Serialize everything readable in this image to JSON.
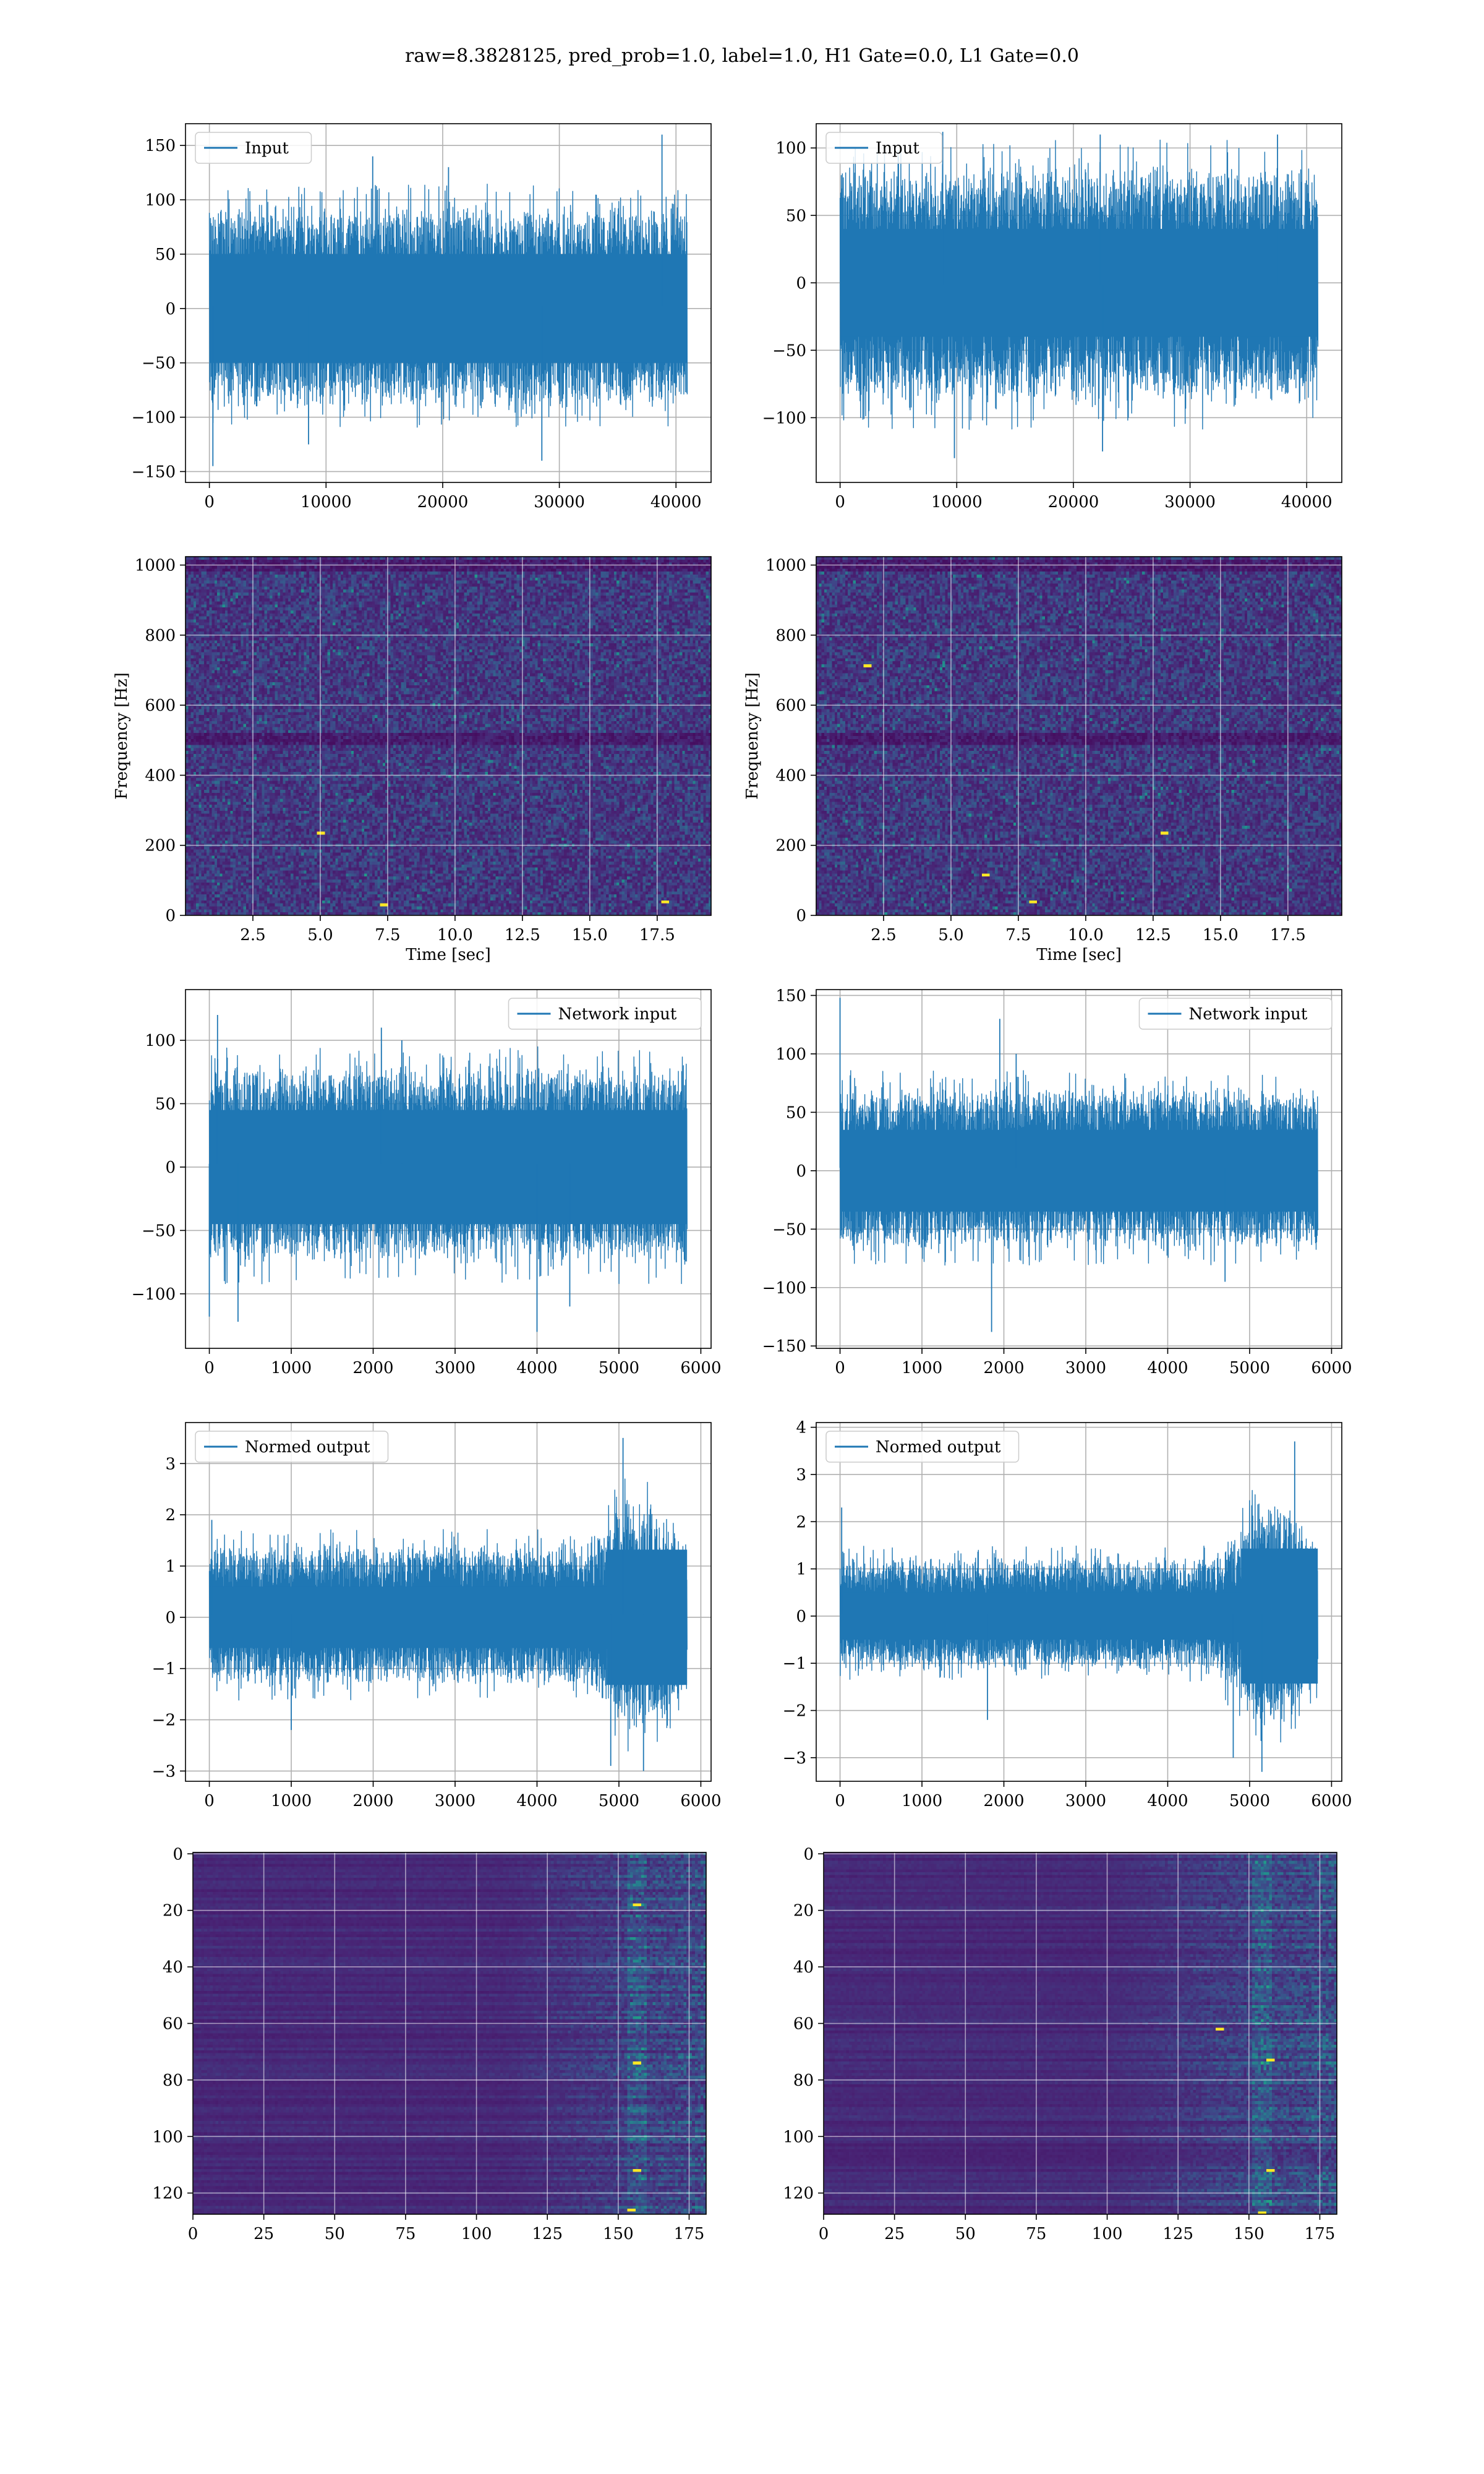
{
  "figure": {
    "suptitle": "raw=8.3828125, pred_prob=1.0, label=1.0, H1 Gate=0.0, L1 Gate=0.0"
  },
  "chart_data": [
    {
      "id": "input_h1",
      "type": "line",
      "legend": "Input",
      "legend_loc": "upper-left",
      "xlim": [
        -2048,
        43008
      ],
      "ylim": [
        -160,
        170
      ],
      "xticks": [
        0,
        10000,
        20000,
        30000,
        40000
      ],
      "xtick_labels": [
        "0",
        "10000",
        "20000",
        "30000",
        "40000"
      ],
      "yticks": [
        -150,
        -100,
        -50,
        0,
        50,
        100,
        150
      ],
      "ytick_labels": [
        "−150",
        "−100",
        "−50",
        "0",
        "50",
        "100",
        "150"
      ],
      "grid": true,
      "color": "#1f77b4",
      "signal": {
        "n_samples": 40960,
        "x_max": 40960,
        "envelope_lo": -95,
        "envelope_hi": 100,
        "typical_band": [
          -50,
          50
        ],
        "spikes": [
          [
            300,
            -145
          ],
          [
            14000,
            140
          ],
          [
            38800,
            160
          ],
          [
            20500,
            130
          ],
          [
            8500,
            -125
          ],
          [
            28500,
            -140
          ]
        ]
      }
    },
    {
      "id": "input_l1",
      "type": "line",
      "legend": "Input",
      "legend_loc": "upper-left",
      "xlim": [
        -2048,
        43008
      ],
      "ylim": [
        -148,
        118
      ],
      "xticks": [
        0,
        10000,
        20000,
        30000,
        40000
      ],
      "xtick_labels": [
        "0",
        "10000",
        "20000",
        "30000",
        "40000"
      ],
      "yticks": [
        -100,
        -50,
        0,
        50,
        100
      ],
      "ytick_labels": [
        "−100",
        "−50",
        "0",
        "50",
        "100"
      ],
      "grid": true,
      "color": "#1f77b4",
      "signal": {
        "n_samples": 40960,
        "x_max": 40960,
        "envelope_lo": -95,
        "envelope_hi": 92,
        "typical_band": [
          -40,
          40
        ],
        "spikes": [
          [
            8800,
            112
          ],
          [
            37500,
            110
          ],
          [
            9800,
            -130
          ],
          [
            22500,
            -125
          ],
          [
            22300,
            110
          ]
        ]
      }
    },
    {
      "id": "spec_h1",
      "type": "heatmap",
      "colormap": "viridis",
      "xlabel": "Time [sec]",
      "ylabel": "Frequency [Hz]",
      "xlim": [
        0.0,
        19.5
      ],
      "ylim": [
        0,
        1024
      ],
      "xticks": [
        2.5,
        5.0,
        7.5,
        10.0,
        12.5,
        15.0,
        17.5
      ],
      "xtick_labels": [
        "2.5",
        "5.0",
        "7.5",
        "10.0",
        "12.5",
        "15.0",
        "17.5"
      ],
      "yticks": [
        0,
        200,
        400,
        600,
        800,
        1000
      ],
      "ytick_labels": [
        "0",
        "200",
        "400",
        "600",
        "800",
        "1000"
      ],
      "grid": true,
      "field": {
        "dark_bands_hz": [
          500,
          1000
        ],
        "hot_spots": [
          [
            7.3,
            30
          ],
          [
            17.7,
            40
          ],
          [
            5.0,
            240
          ]
        ],
        "seed": 11
      }
    },
    {
      "id": "spec_l1",
      "type": "heatmap",
      "colormap": "viridis",
      "xlabel": "Time [sec]",
      "ylabel": "Frequency [Hz]",
      "xlim": [
        0.0,
        19.5
      ],
      "ylim": [
        0,
        1024
      ],
      "xticks": [
        2.5,
        5.0,
        7.5,
        10.0,
        12.5,
        15.0,
        17.5
      ],
      "xtick_labels": [
        "2.5",
        "5.0",
        "7.5",
        "10.0",
        "12.5",
        "15.0",
        "17.5"
      ],
      "yticks": [
        0,
        200,
        400,
        600,
        800,
        1000
      ],
      "ytick_labels": [
        "0",
        "200",
        "400",
        "600",
        "800",
        "1000"
      ],
      "grid": true,
      "field": {
        "dark_bands_hz": [
          500,
          1000
        ],
        "hot_spots": [
          [
            6.2,
            120
          ],
          [
            1.9,
            720
          ],
          [
            8.0,
            40
          ],
          [
            12.9,
            240
          ]
        ],
        "seed": 23
      }
    },
    {
      "id": "netin_h1",
      "type": "line",
      "legend": "Network input",
      "legend_loc": "upper-right",
      "xlim": [
        -291,
        6125
      ],
      "ylim": [
        -143,
        140
      ],
      "xticks": [
        0,
        1000,
        2000,
        3000,
        4000,
        5000,
        6000
      ],
      "xtick_labels": [
        "0",
        "1000",
        "2000",
        "3000",
        "4000",
        "5000",
        "6000"
      ],
      "yticks": [
        -100,
        -50,
        0,
        50,
        100
      ],
      "ytick_labels": [
        "−100",
        "−50",
        "0",
        "50",
        "100"
      ],
      "grid": true,
      "color": "#1f77b4",
      "signal": {
        "n_samples": 5832,
        "x_max": 5832,
        "envelope_lo": -80,
        "envelope_hi": 85,
        "typical_band": [
          -45,
          45
        ],
        "spikes": [
          [
            0,
            -118
          ],
          [
            100,
            120
          ],
          [
            350,
            -122
          ],
          [
            2100,
            110
          ],
          [
            4000,
            -130
          ],
          [
            2350,
            100
          ],
          [
            4400,
            -110
          ]
        ]
      }
    },
    {
      "id": "netin_l1",
      "type": "line",
      "legend": "Network input",
      "legend_loc": "upper-right",
      "xlim": [
        -291,
        6125
      ],
      "ylim": [
        -152,
        155
      ],
      "xticks": [
        0,
        1000,
        2000,
        3000,
        4000,
        5000,
        6000
      ],
      "xtick_labels": [
        "0",
        "1000",
        "2000",
        "3000",
        "4000",
        "5000",
        "6000"
      ],
      "yticks": [
        -150,
        -100,
        -50,
        0,
        50,
        100,
        150
      ],
      "ytick_labels": [
        "−150",
        "−100",
        "−50",
        "0",
        "50",
        "100",
        "150"
      ],
      "grid": true,
      "color": "#1f77b4",
      "signal": {
        "n_samples": 5832,
        "x_max": 5832,
        "envelope_lo": -70,
        "envelope_hi": 75,
        "typical_band": [
          -35,
          35
        ],
        "spikes": [
          [
            0,
            148
          ],
          [
            1950,
            130
          ],
          [
            1850,
            -138
          ],
          [
            2150,
            100
          ],
          [
            4700,
            -95
          ]
        ]
      }
    },
    {
      "id": "normed_h1",
      "type": "line",
      "legend": "Normed output",
      "legend_loc": "upper-left",
      "xlim": [
        -291,
        6125
      ],
      "ylim": [
        -3.2,
        3.8
      ],
      "xticks": [
        0,
        1000,
        2000,
        3000,
        4000,
        5000,
        6000
      ],
      "xtick_labels": [
        "0",
        "1000",
        "2000",
        "3000",
        "4000",
        "5000",
        "6000"
      ],
      "yticks": [
        -3,
        -2,
        -1,
        0,
        1,
        2,
        3
      ],
      "ytick_labels": [
        "−3",
        "−2",
        "−1",
        "0",
        "1",
        "2",
        "3"
      ],
      "grid": true,
      "color": "#1f77b4",
      "signal": {
        "n_samples": 5832,
        "x_max": 5832,
        "envelope_lo": -1.4,
        "envelope_hi": 1.5,
        "typical_band": [
          -0.6,
          0.6
        ],
        "burst": {
          "start": 4650,
          "end": 5832,
          "amp": 2.4
        },
        "spikes": [
          [
            30,
            1.9
          ],
          [
            1000,
            -2.2
          ],
          [
            5050,
            3.5
          ],
          [
            5300,
            -3.0
          ],
          [
            4900,
            -2.9
          ]
        ]
      }
    },
    {
      "id": "normed_l1",
      "type": "line",
      "legend": "Normed output",
      "legend_loc": "upper-left",
      "xlim": [
        -291,
        6125
      ],
      "ylim": [
        -3.5,
        4.1
      ],
      "xticks": [
        0,
        1000,
        2000,
        3000,
        4000,
        5000,
        6000
      ],
      "xtick_labels": [
        "0",
        "1000",
        "2000",
        "3000",
        "4000",
        "5000",
        "6000"
      ],
      "yticks": [
        -3,
        -2,
        -1,
        0,
        1,
        2,
        3,
        4
      ],
      "ytick_labels": [
        "−3",
        "−2",
        "−1",
        "0",
        "1",
        "2",
        "3",
        "4"
      ],
      "grid": true,
      "color": "#1f77b4",
      "signal": {
        "n_samples": 5832,
        "x_max": 5832,
        "envelope_lo": -1.2,
        "envelope_hi": 1.3,
        "typical_band": [
          -0.5,
          0.5
        ],
        "burst": {
          "start": 4700,
          "end": 5832,
          "amp": 2.6
        },
        "spikes": [
          [
            20,
            2.3
          ],
          [
            1800,
            -2.2
          ],
          [
            5550,
            3.7
          ],
          [
            5150,
            -3.3
          ],
          [
            4800,
            -3.0
          ]
        ]
      }
    },
    {
      "id": "act_h1",
      "type": "heatmap",
      "colormap": "viridis",
      "xlim": [
        0,
        181
      ],
      "ylim": [
        127.5,
        -0.5
      ],
      "xticks": [
        0,
        25,
        50,
        75,
        100,
        125,
        150,
        175
      ],
      "xtick_labels": [
        "0",
        "25",
        "50",
        "75",
        "100",
        "125",
        "150",
        "175"
      ],
      "yticks": [
        0,
        20,
        40,
        60,
        80,
        100,
        120
      ],
      "ytick_labels": [
        "0",
        "20",
        "40",
        "60",
        "80",
        "100",
        "120"
      ],
      "grid": true,
      "field": {
        "rows": 128,
        "cols": 182,
        "onset_col": 110,
        "bright_col": 157,
        "seed": 5,
        "hot_spots": [
          [
            157,
            74
          ],
          [
            157,
            18
          ],
          [
            155,
            126
          ],
          [
            157,
            112
          ]
        ]
      }
    },
    {
      "id": "act_l1",
      "type": "heatmap",
      "colormap": "viridis",
      "xlim": [
        0,
        181
      ],
      "ylim": [
        127.5,
        -0.5
      ],
      "xticks": [
        0,
        25,
        50,
        75,
        100,
        125,
        150,
        175
      ],
      "xtick_labels": [
        "0",
        "25",
        "50",
        "75",
        "100",
        "125",
        "150",
        "175"
      ],
      "yticks": [
        0,
        20,
        40,
        60,
        80,
        100,
        120
      ],
      "ytick_labels": [
        "0",
        "20",
        "40",
        "60",
        "80",
        "100",
        "120"
      ],
      "grid": true,
      "field": {
        "rows": 128,
        "cols": 182,
        "onset_col": 100,
        "bright_col": 155,
        "seed": 9,
        "hot_spots": [
          [
            155,
            127
          ],
          [
            158,
            73
          ],
          [
            158,
            112
          ],
          [
            140,
            62
          ]
        ]
      }
    }
  ]
}
